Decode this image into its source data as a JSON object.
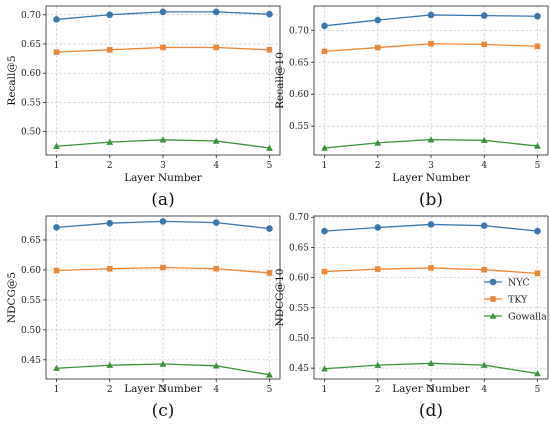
{
  "series_style": [
    {
      "name": "NYC",
      "color": "#3a76af",
      "marker": "circle"
    },
    {
      "name": "TKY",
      "color": "#ef8636",
      "marker": "square"
    },
    {
      "name": "Gowalla",
      "color": "#3b923b",
      "marker": "triangle"
    }
  ],
  "chart_data": [
    {
      "type": "line",
      "panel_label": "(a)",
      "xlabel": "Layer Number",
      "ylabel": "Recall@5",
      "x": [
        1,
        2,
        3,
        4,
        5
      ],
      "ylim": [
        0.46,
        0.715
      ],
      "yticks": [
        0.5,
        0.55,
        0.6,
        0.65,
        0.7
      ],
      "ytick_labels": [
        "0.50",
        "0.55",
        "0.60",
        "0.65",
        "0.70"
      ],
      "grid": true,
      "legend": false,
      "series": [
        {
          "name": "NYC",
          "values": [
            0.692,
            0.7,
            0.705,
            0.705,
            0.701
          ]
        },
        {
          "name": "TKY",
          "values": [
            0.636,
            0.64,
            0.644,
            0.644,
            0.64
          ]
        },
        {
          "name": "Gowalla",
          "values": [
            0.475,
            0.482,
            0.486,
            0.484,
            0.472
          ]
        }
      ]
    },
    {
      "type": "line",
      "panel_label": "(b)",
      "xlabel": "Layer Number",
      "ylabel": "Recall@10",
      "x": [
        1,
        2,
        3,
        4,
        5
      ],
      "ylim": [
        0.505,
        0.738
      ],
      "yticks": [
        0.55,
        0.6,
        0.65,
        0.7
      ],
      "ytick_labels": [
        "0.55",
        "0.60",
        "0.65",
        "0.70"
      ],
      "grid": true,
      "legend": false,
      "series": [
        {
          "name": "NYC",
          "values": [
            0.707,
            0.716,
            0.724,
            0.723,
            0.722
          ]
        },
        {
          "name": "TKY",
          "values": [
            0.667,
            0.673,
            0.679,
            0.678,
            0.675
          ]
        },
        {
          "name": "Gowalla",
          "values": [
            0.516,
            0.524,
            0.529,
            0.528,
            0.519
          ]
        }
      ]
    },
    {
      "type": "line",
      "panel_label": "(c)",
      "xlabel": "Layer Number",
      "ylabel": "NDCG@5",
      "x": [
        1,
        2,
        3,
        4,
        5
      ],
      "ylim": [
        0.418,
        0.69
      ],
      "yticks": [
        0.45,
        0.5,
        0.55,
        0.6,
        0.65
      ],
      "ytick_labels": [
        "0.45",
        "0.50",
        "0.55",
        "0.60",
        "0.65"
      ],
      "grid": true,
      "legend": false,
      "series": [
        {
          "name": "NYC",
          "values": [
            0.671,
            0.678,
            0.681,
            0.679,
            0.669
          ]
        },
        {
          "name": "TKY",
          "values": [
            0.599,
            0.602,
            0.604,
            0.602,
            0.595
          ]
        },
        {
          "name": "Gowalla",
          "values": [
            0.436,
            0.441,
            0.443,
            0.44,
            0.425
          ]
        }
      ]
    },
    {
      "type": "line",
      "panel_label": "(d)",
      "xlabel": "Layer Number",
      "ylabel": "NDCG@10",
      "x": [
        1,
        2,
        3,
        4,
        5
      ],
      "ylim": [
        0.432,
        0.702
      ],
      "yticks": [
        0.45,
        0.5,
        0.55,
        0.6,
        0.65,
        0.7
      ],
      "ytick_labels": [
        "0.45",
        "0.50",
        "0.55",
        "0.60",
        "0.65",
        "0.70"
      ],
      "grid": true,
      "legend": true,
      "legend_position": "right",
      "series": [
        {
          "name": "NYC",
          "values": [
            0.677,
            0.683,
            0.688,
            0.686,
            0.677
          ]
        },
        {
          "name": "TKY",
          "values": [
            0.61,
            0.614,
            0.616,
            0.613,
            0.607
          ]
        },
        {
          "name": "Gowalla",
          "values": [
            0.449,
            0.455,
            0.458,
            0.455,
            0.441
          ]
        }
      ]
    }
  ]
}
